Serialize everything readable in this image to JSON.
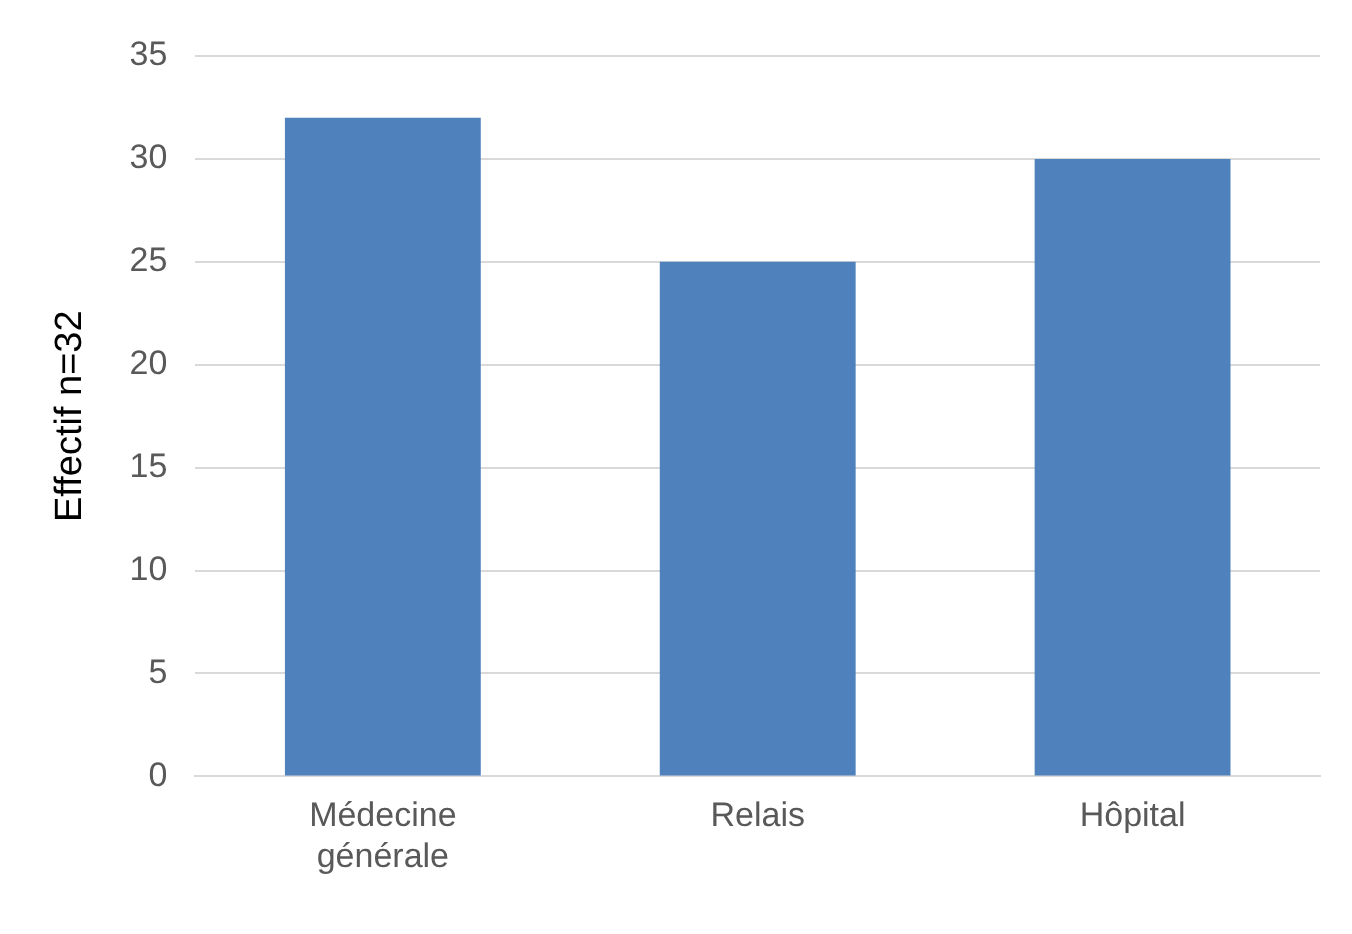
{
  "chart_data": {
    "type": "bar",
    "ylabel": "Effectif n=32",
    "categories": [
      "Médecine générale",
      "Relais",
      "Hôpital"
    ],
    "values": [
      32,
      25,
      30
    ],
    "color": "#4f81bd",
    "ylim": [
      0,
      35
    ],
    "yticks": [
      0,
      5,
      10,
      15,
      20,
      25,
      30,
      35
    ],
    "grid": "y",
    "legend": false
  }
}
